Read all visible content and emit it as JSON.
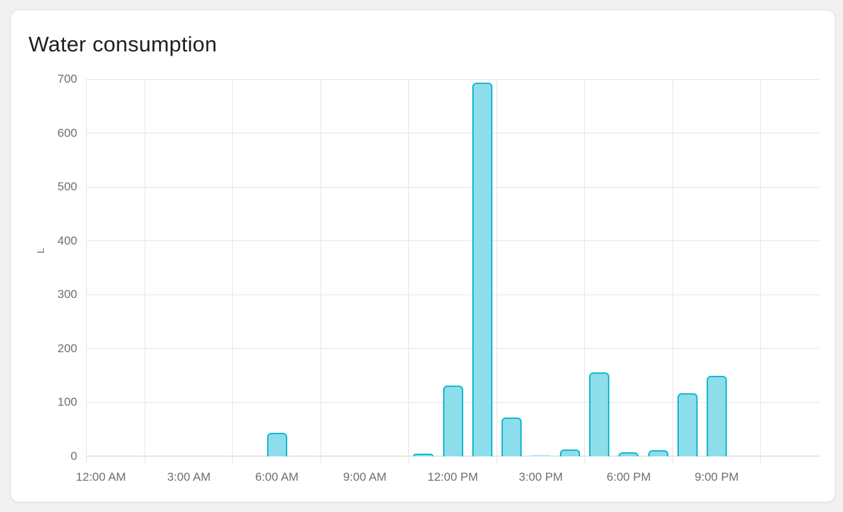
{
  "card": {
    "title": "Water consumption"
  },
  "chart_data": {
    "type": "bar",
    "title": "Water consumption",
    "xlabel": "",
    "ylabel": "L",
    "ylim": [
      0,
      700
    ],
    "y_ticks": [
      0,
      100,
      200,
      300,
      400,
      500,
      600,
      700
    ],
    "x_tick_labels": [
      "12:00 AM",
      "3:00 AM",
      "6:00 AM",
      "9:00 AM",
      "12:00 PM",
      "3:00 PM",
      "6:00 PM",
      "9:00 PM"
    ],
    "x_tick_interval_hours": 3,
    "grid": true,
    "legend": false,
    "categories": [
      "12:00 AM",
      "1:00 AM",
      "2:00 AM",
      "3:00 AM",
      "4:00 AM",
      "5:00 AM",
      "6:00 AM",
      "7:00 AM",
      "8:00 AM",
      "9:00 AM",
      "10:00 AM",
      "11:00 AM",
      "12:00 PM",
      "1:00 PM",
      "2:00 PM",
      "3:00 PM",
      "4:00 PM",
      "5:00 PM",
      "6:00 PM",
      "7:00 PM",
      "8:00 PM",
      "9:00 PM",
      "10:00 PM",
      "11:00 PM"
    ],
    "values": [
      0,
      0,
      0,
      0,
      0,
      0,
      44,
      0,
      0,
      0,
      0,
      5,
      131,
      694,
      72,
      2,
      13,
      156,
      8,
      11,
      117,
      149,
      0,
      0
    ],
    "colors": {
      "bar_fill": "#8ddeea",
      "bar_fill_faint": "#aee8f1",
      "bar_border": "#12b8d2"
    }
  }
}
